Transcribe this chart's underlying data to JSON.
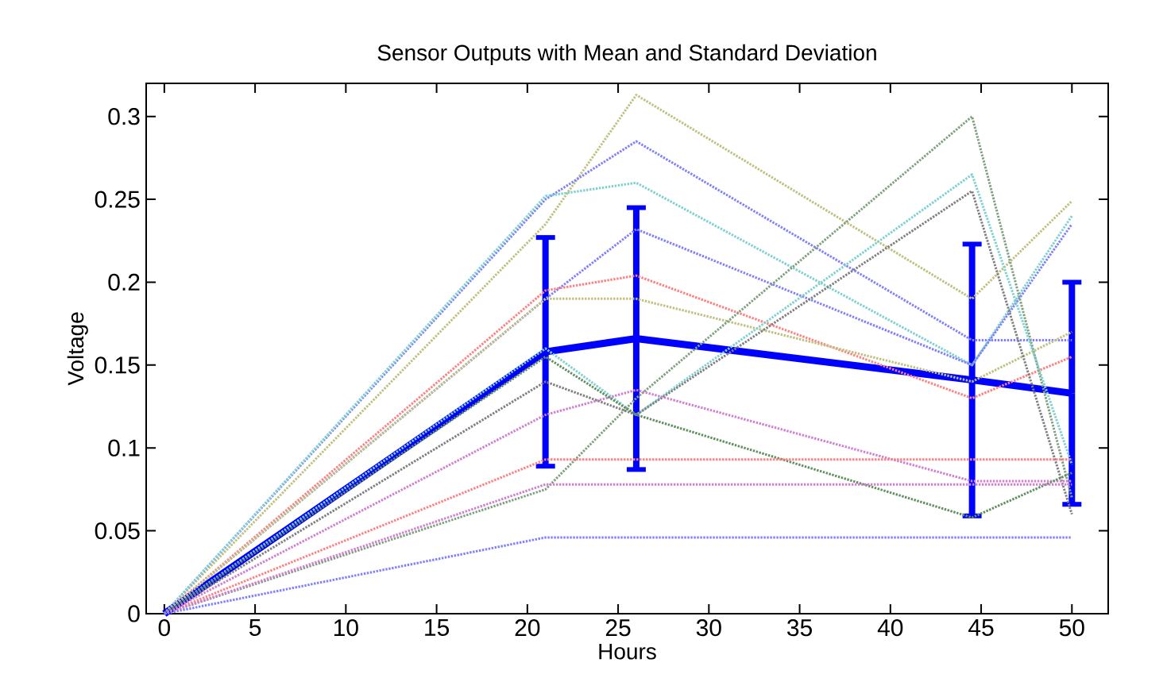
{
  "chart_data": {
    "type": "line",
    "title": "Sensor Outputs with Mean and Standard Deviation",
    "xlabel": "Hours",
    "ylabel": "Voltage",
    "x": [
      0,
      21,
      26,
      44.5,
      50
    ],
    "xlim": [
      -1,
      52
    ],
    "ylim": [
      0,
      0.32
    ],
    "xticks": [
      0,
      5,
      10,
      15,
      20,
      25,
      30,
      35,
      40,
      45,
      50
    ],
    "yticks": [
      0,
      0.05,
      0.1,
      0.15,
      0.2,
      0.25,
      0.3
    ],
    "grid": false,
    "legend": false,
    "line_style": "dotted",
    "series": [
      {
        "color": "#c0c080",
        "values": [
          0,
          0.235,
          0.313,
          0.19,
          0.249
        ]
      },
      {
        "color": "#8080ff",
        "values": [
          0,
          0.25,
          0.285,
          0.165,
          0.165
        ]
      },
      {
        "color": "#80d0d0",
        "values": [
          0,
          0.252,
          0.26,
          0.15,
          0.24
        ]
      },
      {
        "color": "#8080ff",
        "values": [
          0,
          0.19,
          0.232,
          0.15,
          0.235
        ]
      },
      {
        "color": "#ff8080",
        "values": [
          0,
          0.195,
          0.204,
          0.13,
          0.155
        ]
      },
      {
        "color": "#c0c080",
        "values": [
          0,
          0.19,
          0.19,
          0.14,
          0.17
        ]
      },
      {
        "color": "#80a080",
        "values": [
          0,
          0.075,
          0.13,
          0.3,
          0.07
        ]
      },
      {
        "color": "#80d0d0",
        "values": [
          0,
          0.16,
          0.12,
          0.265,
          0.09
        ]
      },
      {
        "color": "#808080",
        "values": [
          0,
          0.14,
          0.12,
          0.255,
          0.06
        ]
      },
      {
        "color": "#d080d0",
        "values": [
          0,
          0.12,
          0.135,
          0.08,
          0.08
        ]
      },
      {
        "color": "#609060",
        "values": [
          0,
          0.155,
          0.12,
          0.058,
          0.085
        ]
      },
      {
        "color": "#ff8080",
        "values": [
          0,
          0.093,
          0.093,
          0.093,
          0.093
        ]
      },
      {
        "color": "#d080d0",
        "values": [
          0,
          0.078,
          0.078,
          0.078,
          0.078
        ]
      },
      {
        "color": "#8080ff",
        "values": [
          0,
          0.046,
          0.046,
          0.046,
          0.046
        ]
      },
      {
        "color": "#0000ff",
        "line_style": "solid",
        "values": [
          0,
          0.158,
          0.166,
          0.141,
          0.133
        ],
        "errors": [
          null,
          0.069,
          0.079,
          0.082,
          0.067
        ]
      }
    ]
  }
}
